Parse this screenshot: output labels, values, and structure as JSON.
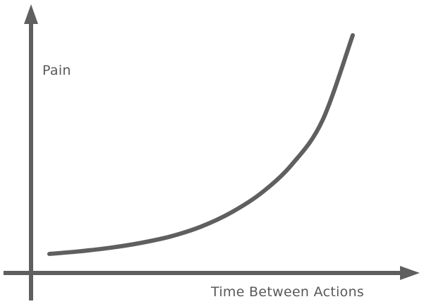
{
  "chart_data": {
    "type": "line",
    "title": "",
    "xlabel": "Time Between Actions",
    "ylabel": "Pain",
    "xticks": [],
    "yticks": [],
    "grid": false,
    "legend": "none",
    "x": [
      0.0,
      0.1,
      0.2,
      0.3,
      0.4,
      0.5,
      0.6,
      0.7,
      0.8,
      0.9,
      1.0
    ],
    "series": [
      {
        "values": [
          0.0,
          0.012,
          0.028,
          0.05,
          0.08,
          0.125,
          0.19,
          0.28,
          0.41,
          0.61,
          1.0
        ]
      }
    ],
    "xlim": [
      0,
      1
    ],
    "ylim": [
      0,
      1
    ],
    "colors": {
      "axis": "#5f5f5f",
      "curve": "#5f5f5f",
      "text": "#595959"
    }
  }
}
